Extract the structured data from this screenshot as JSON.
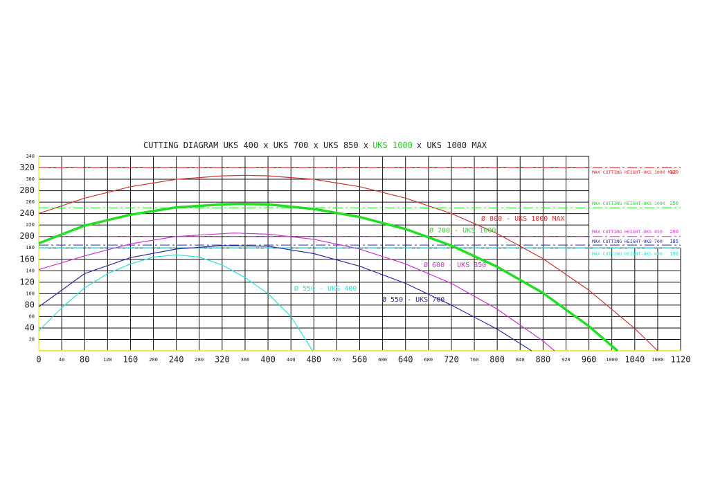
{
  "chart_data": {
    "type": "line",
    "title_parts": [
      {
        "text": "CUTTING DIAGRAM UKS 400 x UKS 700 x UKS 850 x",
        "color": "#222222"
      },
      {
        "text": "UKS 1000",
        "color": "#22cc22"
      },
      {
        "text": "x UKS 1000 MAX",
        "color": "#222222"
      }
    ],
    "xlim": [
      0,
      1120
    ],
    "ylim": [
      0,
      340
    ],
    "xticks": [
      0,
      40,
      80,
      120,
      160,
      200,
      240,
      280,
      320,
      360,
      400,
      440,
      480,
      520,
      560,
      600,
      640,
      680,
      720,
      760,
      800,
      840,
      880,
      920,
      960,
      1000,
      1040,
      1080,
      1120
    ],
    "yticks": [
      20,
      40,
      60,
      80,
      100,
      120,
      140,
      160,
      180,
      200,
      220,
      240,
      260,
      280,
      300,
      320,
      340
    ],
    "grid": true,
    "series": [
      {
        "name": "Ø 800 - UKS 1000 MAX",
        "color": "#cc3333",
        "width": 1.2,
        "x": [
          0,
          80,
          160,
          240,
          320,
          360,
          400,
          480,
          560,
          640,
          720,
          800,
          880,
          960,
          1040,
          1080
        ],
        "values": [
          240,
          267,
          287,
          300,
          306,
          307,
          306,
          300,
          287,
          267,
          240,
          205,
          161,
          106,
          39,
          0
        ]
      },
      {
        "name": "Ø 700 - UKS 1000",
        "color": "#22dd22",
        "width": 3.5,
        "x": [
          0,
          80,
          160,
          240,
          320,
          350,
          400,
          480,
          560,
          640,
          720,
          800,
          880,
          960,
          1010
        ],
        "values": [
          188,
          219,
          238,
          251,
          256,
          257,
          256,
          248,
          234,
          213,
          184,
          147,
          101,
          43,
          0
        ]
      },
      {
        "name": "Ø 600 - UKS 850",
        "color": "#cc33cc",
        "width": 1.2,
        "x": [
          0,
          80,
          160,
          240,
          340,
          400,
          480,
          560,
          640,
          720,
          800,
          880,
          900
        ],
        "values": [
          142,
          166,
          187,
          200,
          206,
          204,
          195,
          178,
          152,
          118,
          73,
          17,
          0
        ]
      },
      {
        "name": "Ø 550 - UKS 700",
        "color": "#2a2aa0",
        "width": 1.2,
        "x": [
          0,
          80,
          160,
          240,
          320,
          400,
          480,
          560,
          640,
          720,
          800,
          860
        ],
        "values": [
          77,
          135,
          163,
          178,
          184,
          183,
          170,
          148,
          118,
          80,
          38,
          0
        ]
      },
      {
        "name": "Ø 550 - UKS 400",
        "color": "#33dddd",
        "width": 1.2,
        "x": [
          0,
          40,
          80,
          120,
          160,
          200,
          240,
          280,
          320,
          360,
          400,
          440,
          478
        ],
        "values": [
          35,
          75,
          110,
          135,
          152,
          164,
          168,
          164,
          150,
          128,
          100,
          60,
          0
        ]
      }
    ],
    "limits": [
      {
        "name": "MAX CUTTING HEIGHT-UKS 1000 MAX",
        "value": 320,
        "color": "#cc3333"
      },
      {
        "name": "MAX CUTTING HEIGHT-UKS 1000",
        "value": 250,
        "color": "#22dd22"
      },
      {
        "name": "MAX CUTTING HEIGHT-UKS 850",
        "value": 200,
        "color": "#cc33cc"
      },
      {
        "name": "MAX CUTTING HEIGHT-UKS 700",
        "value": 185,
        "color": "#2a2aa0"
      },
      {
        "name": "MAX CUTTING HEIGHT-UKS 400",
        "value": 180,
        "color": "#33dddd"
      }
    ]
  }
}
